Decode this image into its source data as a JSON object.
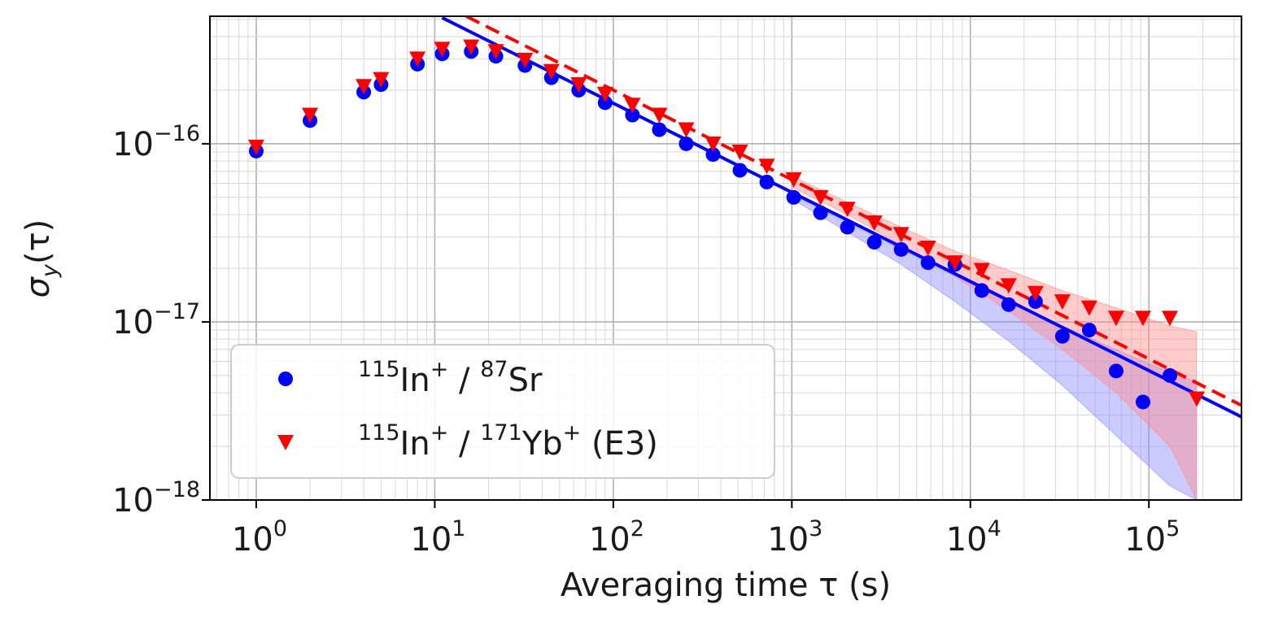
{
  "chart_data": {
    "type": "scatter",
    "xscale": "log",
    "yscale": "log",
    "xlim": [
      0.55,
      330000
    ],
    "ylim": [
      1e-18,
      5.2e-16
    ],
    "grid": true,
    "xlabel": "Averaging time τ (s)",
    "ylabel_main": "σ",
    "ylabel_sub": "y",
    "ylabel_arg": "(τ)",
    "x_ticks": [
      {
        "value": 1,
        "base": "10",
        "exp": "0"
      },
      {
        "value": 10,
        "base": "10",
        "exp": "1"
      },
      {
        "value": 100,
        "base": "10",
        "exp": "2"
      },
      {
        "value": 1000,
        "base": "10",
        "exp": "3"
      },
      {
        "value": 10000,
        "base": "10",
        "exp": "4"
      },
      {
        "value": 100000,
        "base": "10",
        "exp": "5"
      }
    ],
    "y_ticks": [
      {
        "value": 1e-16,
        "base": "10",
        "exp": "−16"
      },
      {
        "value": 1e-17,
        "base": "10",
        "exp": "−17"
      },
      {
        "value": 1e-18,
        "base": "10",
        "exp": "−18"
      }
    ],
    "legend": {
      "placement": "lower-left",
      "entries": [
        {
          "series": "in_sr",
          "parts": [
            [
              "sup",
              "115"
            ],
            [
              "txt",
              "In"
            ],
            [
              "sup",
              "+"
            ],
            [
              "txt",
              " / "
            ],
            [
              "sup",
              "87"
            ],
            [
              "txt",
              "Sr"
            ]
          ]
        },
        {
          "series": "in_yb",
          "parts": [
            [
              "sup",
              "115"
            ],
            [
              "txt",
              "In"
            ],
            [
              "sup",
              "+"
            ],
            [
              "txt",
              " / "
            ],
            [
              "sup",
              "171"
            ],
            [
              "txt",
              "Yb"
            ],
            [
              "sup",
              "+"
            ],
            [
              "txt",
              " (E3)"
            ]
          ]
        }
      ]
    },
    "series": [
      {
        "id": "in_sr",
        "color": "#0000ff",
        "marker": "circle",
        "x": [
          1,
          2,
          4,
          5,
          8,
          11,
          16,
          22,
          32,
          45,
          64,
          90,
          128,
          181,
          256,
          362,
          512,
          724,
          1024,
          1448,
          2048,
          2896,
          4096,
          5792,
          8192,
          11585,
          16384,
          23170,
          32768,
          46341,
          65536,
          92682,
          131072
        ],
        "y": [
          9.1e-17,
          1.35e-16,
          1.95e-16,
          2.15e-16,
          2.8e-16,
          3.2e-16,
          3.3e-16,
          3.1e-16,
          2.75e-16,
          2.35e-16,
          2e-16,
          1.7e-16,
          1.45e-16,
          1.2e-16,
          1e-16,
          8.7e-17,
          7.1e-17,
          6.1e-17,
          5e-17,
          4.1e-17,
          3.4e-17,
          2.8e-17,
          2.55e-17,
          2.15e-17,
          2.1e-17,
          1.5e-17,
          1.25e-17,
          1.3e-17,
          8.3e-18,
          9e-18,
          5.3e-18,
          3.55e-18,
          5e-18
        ]
      },
      {
        "id": "in_yb",
        "color": "#ff0000",
        "marker": "triangle-down",
        "x": [
          1,
          2,
          4,
          5,
          8,
          11,
          16,
          22,
          32,
          45,
          64,
          90,
          128,
          181,
          256,
          362,
          512,
          724,
          1024,
          1448,
          2048,
          2896,
          4096,
          5792,
          8192,
          11585,
          16384,
          23170,
          32768,
          46341,
          65536,
          92682,
          131072,
          185364
        ],
        "y": [
          9.6e-17,
          1.45e-16,
          2.1e-16,
          2.3e-16,
          3e-16,
          3.4e-16,
          3.5e-16,
          3.3e-16,
          2.95e-16,
          2.55e-16,
          2.15e-16,
          1.9e-16,
          1.65e-16,
          1.45e-16,
          1.2e-16,
          1e-16,
          9e-17,
          7.5e-17,
          6.3e-17,
          5e-17,
          4.3e-17,
          3.6e-17,
          3.1e-17,
          2.6e-17,
          2.15e-17,
          1.95e-17,
          1.6e-17,
          1.45e-17,
          1.3e-17,
          1.2e-17,
          1.05e-17,
          1.05e-17,
          1.05e-17,
          3.7e-18
        ]
      }
    ],
    "fits": [
      {
        "id": "in_sr_fit",
        "color": "#0000ff",
        "style": "solid",
        "x": [
          11,
          330000
        ],
        "y": [
          5.1e-16,
          2.93e-18
        ]
      },
      {
        "id": "in_yb_fit",
        "color": "#ff0000",
        "style": "dashed",
        "x": [
          15,
          330000
        ],
        "y": [
          5.2e-16,
          3.4e-18
        ]
      }
    ],
    "bands": [
      {
        "id": "in_sr_band",
        "color": "#8c8cff",
        "opacity": 0.45,
        "x": [
          1000,
          2048,
          4096,
          8192,
          16384,
          32768,
          65536,
          131072,
          185000
        ],
        "lower": [
          4.9e-17,
          3.2e-17,
          2.1e-17,
          1.3e-17,
          7.8e-18,
          4.4e-18,
          2.3e-18,
          1.2e-18,
          1e-18
        ],
        "upper": [
          5.2e-17,
          3.6e-17,
          2.55e-17,
          1.8e-17,
          1.3e-17,
          9.5e-18,
          7e-18,
          5.2e-18,
          4.6e-18
        ]
      },
      {
        "id": "in_yb_band",
        "color": "#ff8c8c",
        "opacity": 0.45,
        "x": [
          1000,
          2048,
          4096,
          8192,
          16384,
          32768,
          65536,
          131072,
          185000
        ],
        "lower": [
          5.7e-17,
          4e-17,
          2.7e-17,
          1.8e-17,
          1.15e-17,
          7e-18,
          4e-18,
          2e-18,
          1e-18
        ],
        "upper": [
          6.6e-17,
          4.7e-17,
          3.4e-17,
          2.5e-17,
          1.95e-17,
          1.5e-17,
          1.2e-17,
          9.5e-18,
          8.8e-18
        ]
      }
    ]
  }
}
